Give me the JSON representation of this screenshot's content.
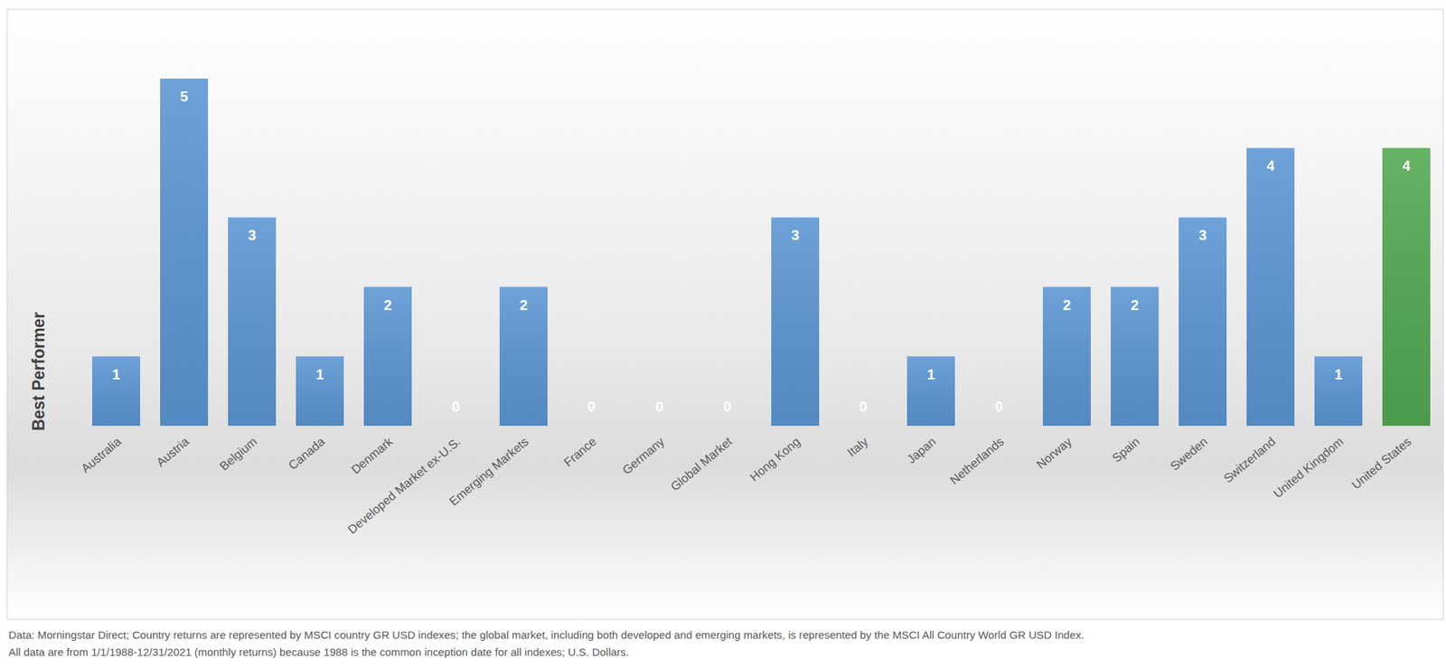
{
  "chart_data": {
    "type": "bar",
    "y_label": "Best Performer",
    "categories": [
      "Australia",
      "Austria",
      "Belgium",
      "Canada",
      "Denmark",
      "Developed Market ex-U.S.",
      "Emerging Markets",
      "France",
      "Germany",
      "Global Market",
      "Hong Kong",
      "Italy",
      "Japan",
      "Netherlands",
      "Norway",
      "Spain",
      "Sweden",
      "Switzerland",
      "United Kingdom",
      "United States"
    ],
    "values": [
      1,
      5,
      3,
      1,
      2,
      0,
      2,
      0,
      0,
      0,
      3,
      0,
      1,
      0,
      2,
      2,
      3,
      4,
      1,
      4
    ],
    "colors": [
      "#5b95d3",
      "#5b95d3",
      "#5b95d3",
      "#5b95d3",
      "#5b95d3",
      "#5b95d3",
      "#5b95d3",
      "#5b95d3",
      "#5b95d3",
      "#5b95d3",
      "#5b95d3",
      "#5b95d3",
      "#5b95d3",
      "#5b95d3",
      "#5b95d3",
      "#5b95d3",
      "#5b95d3",
      "#5b95d3",
      "#5b95d3",
      "#52a852"
    ],
    "ylim": [
      0,
      5
    ],
    "data_labels": true,
    "tick_labels": "x",
    "grid": false,
    "footnote": [
      "Data: Morningstar Direct; Country returns are represented by MSCI country GR USD indexes; the global market, including both developed and emerging markets, is represented by the MSCI All Country World GR USD Index.",
      "All data are from 1/1/1988-12/31/2021 (monthly returns) because 1988 is the common inception date for all indexes; U.S. Dollars."
    ]
  }
}
